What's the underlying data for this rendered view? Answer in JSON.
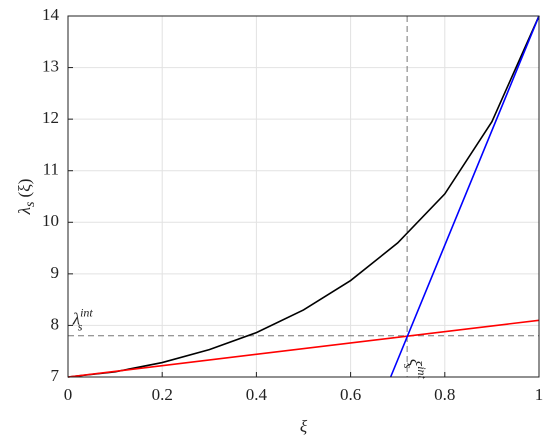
{
  "chart_data": {
    "type": "line",
    "x_label": "ξ",
    "y_label": {
      "base": "λ",
      "sub": "s",
      "rest": "(ξ)"
    },
    "xlim": [
      0,
      1
    ],
    "ylim": [
      7,
      14
    ],
    "xticks": [
      0,
      0.2,
      0.4,
      0.6,
      0.8,
      1
    ],
    "yticks": [
      7,
      8,
      9,
      10,
      11,
      12,
      13,
      14
    ],
    "grid": true,
    "series": [
      {
        "color": "#000000",
        "x": [
          0,
          0.1,
          0.2,
          0.3,
          0.4,
          0.5,
          0.6,
          0.7,
          0.8,
          0.9,
          1
        ],
        "values": [
          7,
          7.1,
          7.28,
          7.53,
          7.86,
          8.3,
          8.87,
          9.6,
          10.55,
          11.95,
          14
        ]
      },
      {
        "color": "#ff0000",
        "x": [
          0,
          1
        ],
        "values": [
          7,
          8.1
        ]
      },
      {
        "color": "#0000ff",
        "x": [
          0.685,
          1
        ],
        "values": [
          7,
          14
        ]
      }
    ],
    "reference_lines": {
      "x": 0.72,
      "y": 7.8,
      "color": "#777777"
    },
    "annotations": [
      {
        "base": "λ",
        "sub": "s",
        "sup": "int",
        "x": 0.01,
        "y": 8.1,
        "rotate": false
      },
      {
        "base": "ξ",
        "sub": "s",
        "sup": "int",
        "x": 0.735,
        "y": 7.35,
        "rotate": true
      }
    ]
  }
}
